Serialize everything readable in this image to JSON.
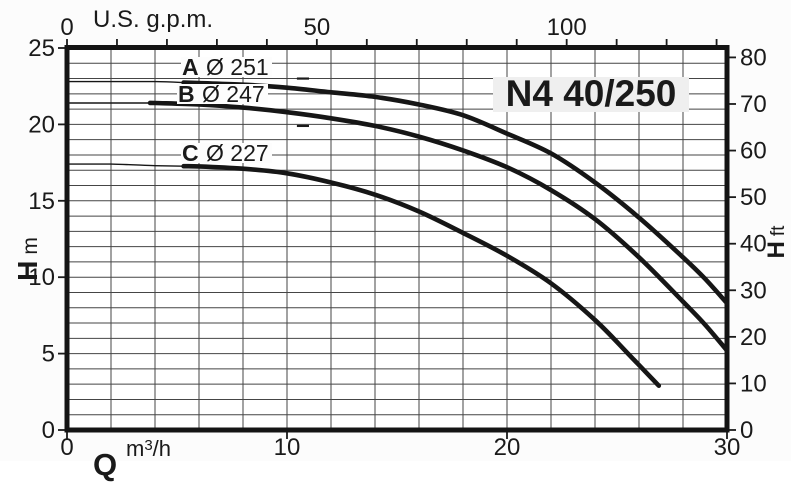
{
  "title": "N4 40/250",
  "labels": {
    "top_axis": "U.S. g.p.m.",
    "left_h": "H",
    "left_unit": "m",
    "right_h": "H",
    "right_unit": "ft",
    "bottom_q": "Q",
    "bottom_unit_pre": "m",
    "bottom_unit_sup": "3",
    "bottom_unit_post": "/h"
  },
  "colors": {
    "ink": "#1a1a1a",
    "grid": "#454545",
    "title_box_bg": "#efefef",
    "plot_bg": "#ffffff",
    "page_bg": "#fcfcfc"
  },
  "chart_data": {
    "type": "line",
    "title": "N4 40/250",
    "x_axis_bottom": {
      "label": "Q m³/h",
      "tick_labels": [
        0,
        10,
        20,
        30
      ],
      "range": [
        0,
        30
      ],
      "minor_grid_step": 2
    },
    "x_axis_top": {
      "label": "U.S. g.p.m.",
      "tick_labels": [
        0,
        50,
        100
      ],
      "minor_tick_step_gpm": 10,
      "max_tick_gpm": 130,
      "m3h_per_gpm": 0.227124
    },
    "y_axis_left": {
      "label": "H m",
      "tick_labels": [
        0,
        5,
        10,
        15,
        20,
        25
      ],
      "range": [
        0,
        25
      ],
      "minor_grid_step": 1
    },
    "y_axis_right": {
      "label": "H ft",
      "tick_labels": [
        0,
        10,
        20,
        30,
        40,
        50,
        60,
        70,
        80
      ],
      "m_per_ft": 0.3048
    },
    "grid": true,
    "series": [
      {
        "name": "A Ø 251",
        "letter": "A",
        "diameter": "Ø 251",
        "thin_until_q": 5.3,
        "points": [
          [
            0,
            22.8
          ],
          [
            2,
            22.8
          ],
          [
            4,
            22.8
          ],
          [
            6,
            22.7
          ],
          [
            8,
            22.6
          ],
          [
            10,
            22.4
          ],
          [
            12,
            22.1
          ],
          [
            14,
            21.8
          ],
          [
            16,
            21.3
          ],
          [
            18,
            20.6
          ],
          [
            20,
            19.4
          ],
          [
            22,
            18.1
          ],
          [
            24,
            16.2
          ],
          [
            26,
            13.9
          ],
          [
            28,
            11.3
          ],
          [
            29,
            9.9
          ],
          [
            30,
            8.3
          ]
        ]
      },
      {
        "name": "B Ø 247",
        "letter": "B",
        "diameter": "Ø 247",
        "thin_until_q": 3.8,
        "points": [
          [
            0,
            21.4
          ],
          [
            2,
            21.4
          ],
          [
            4,
            21.4
          ],
          [
            6,
            21.3
          ],
          [
            8,
            21.1
          ],
          [
            10,
            20.8
          ],
          [
            12,
            20.4
          ],
          [
            14,
            19.9
          ],
          [
            16,
            19.2
          ],
          [
            18,
            18.3
          ],
          [
            20,
            17.2
          ],
          [
            22,
            15.7
          ],
          [
            24,
            13.8
          ],
          [
            26,
            11.3
          ],
          [
            28,
            8.4
          ],
          [
            29,
            6.9
          ],
          [
            30,
            5.2
          ]
        ]
      },
      {
        "name": "C Ø 227",
        "letter": "C",
        "diameter": "Ø 227",
        "thin_until_q": 5.3,
        "points": [
          [
            0,
            17.4
          ],
          [
            2,
            17.4
          ],
          [
            4,
            17.3
          ],
          [
            6,
            17.25
          ],
          [
            8,
            17.1
          ],
          [
            10,
            16.8
          ],
          [
            12,
            16.2
          ],
          [
            14,
            15.4
          ],
          [
            16,
            14.3
          ],
          [
            18,
            12.9
          ],
          [
            20,
            11.4
          ],
          [
            22,
            9.6
          ],
          [
            24,
            7.2
          ],
          [
            25.5,
            5.0
          ],
          [
            26.9,
            2.9
          ]
        ]
      }
    ],
    "marker_dashes": [
      {
        "q1": 10.45,
        "q2": 11.0,
        "h": 23.0
      },
      {
        "q1": 10.45,
        "q2": 11.0,
        "h": 19.9
      }
    ]
  }
}
